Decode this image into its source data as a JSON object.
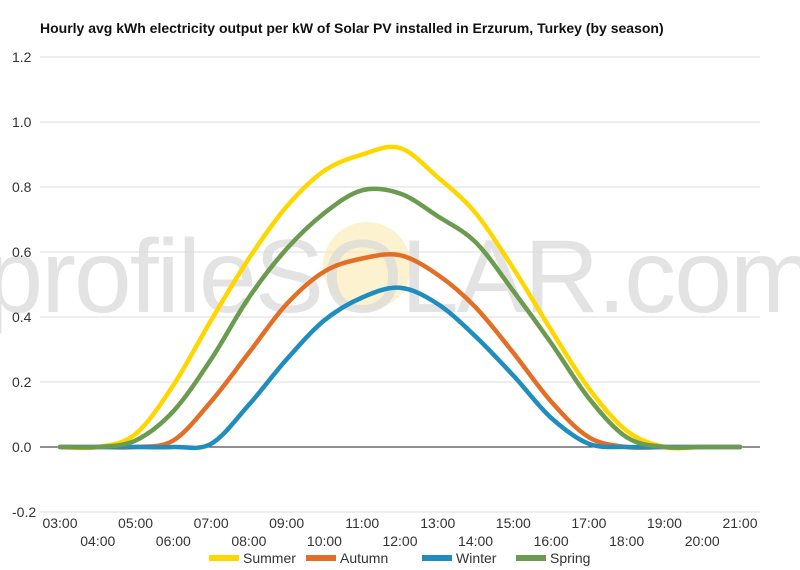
{
  "chart_data": {
    "type": "line",
    "title": "Hourly avg kWh electricity output per kW of Solar PV installed in Erzurum, Turkey (by season)",
    "xlabel": "",
    "ylabel": "",
    "ylim": [
      -0.2,
      1.2
    ],
    "yticks": [
      "-0.2",
      "0.0",
      "0.2",
      "0.4",
      "0.6",
      "0.8",
      "1.0",
      "1.2"
    ],
    "x": [
      "03:00",
      "04:00",
      "05:00",
      "06:00",
      "07:00",
      "08:00",
      "09:00",
      "10:00",
      "11:00",
      "12:00",
      "13:00",
      "14:00",
      "15:00",
      "16:00",
      "17:00",
      "18:00",
      "19:00",
      "20:00",
      "21:00"
    ],
    "grid": true,
    "legend_position": "bottom",
    "series": [
      {
        "name": "Summer",
        "color": "#FFD700",
        "values": [
          0.0,
          0.0,
          0.04,
          0.19,
          0.39,
          0.58,
          0.74,
          0.85,
          0.9,
          0.92,
          0.83,
          0.72,
          0.55,
          0.36,
          0.18,
          0.05,
          0.0,
          0.0,
          0.0
        ]
      },
      {
        "name": "Autumn",
        "color": "#E36F26",
        "values": [
          0.0,
          0.0,
          0.0,
          0.02,
          0.14,
          0.29,
          0.44,
          0.54,
          0.58,
          0.59,
          0.53,
          0.43,
          0.29,
          0.14,
          0.03,
          0.0,
          0.0,
          0.0,
          0.0
        ]
      },
      {
        "name": "Winter",
        "color": "#1F8EBE",
        "values": [
          0.0,
          0.0,
          0.0,
          0.0,
          0.01,
          0.13,
          0.27,
          0.39,
          0.46,
          0.49,
          0.44,
          0.34,
          0.22,
          0.09,
          0.01,
          0.0,
          0.0,
          0.0,
          0.0
        ]
      },
      {
        "name": "Spring",
        "color": "#6B9B4F",
        "values": [
          0.0,
          0.0,
          0.02,
          0.11,
          0.27,
          0.46,
          0.61,
          0.72,
          0.79,
          0.78,
          0.71,
          0.63,
          0.48,
          0.32,
          0.15,
          0.03,
          0.0,
          0.0,
          0.0
        ]
      }
    ]
  },
  "watermark": "profileSOLAR.com"
}
